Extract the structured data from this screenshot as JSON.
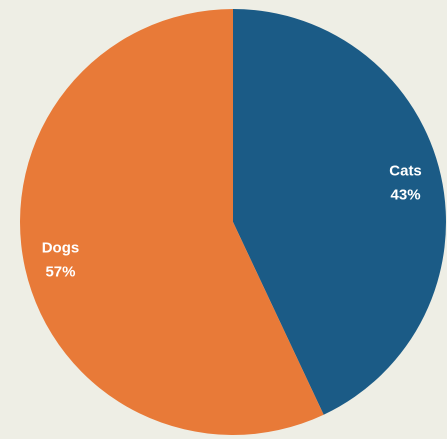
{
  "chart_data": {
    "type": "pie",
    "categories": [
      "Cats",
      "Dogs"
    ],
    "values": [
      43,
      57
    ],
    "value_labels": [
      "43%",
      "57%"
    ],
    "colors": [
      "#1b5b86",
      "#e87a38"
    ]
  }
}
